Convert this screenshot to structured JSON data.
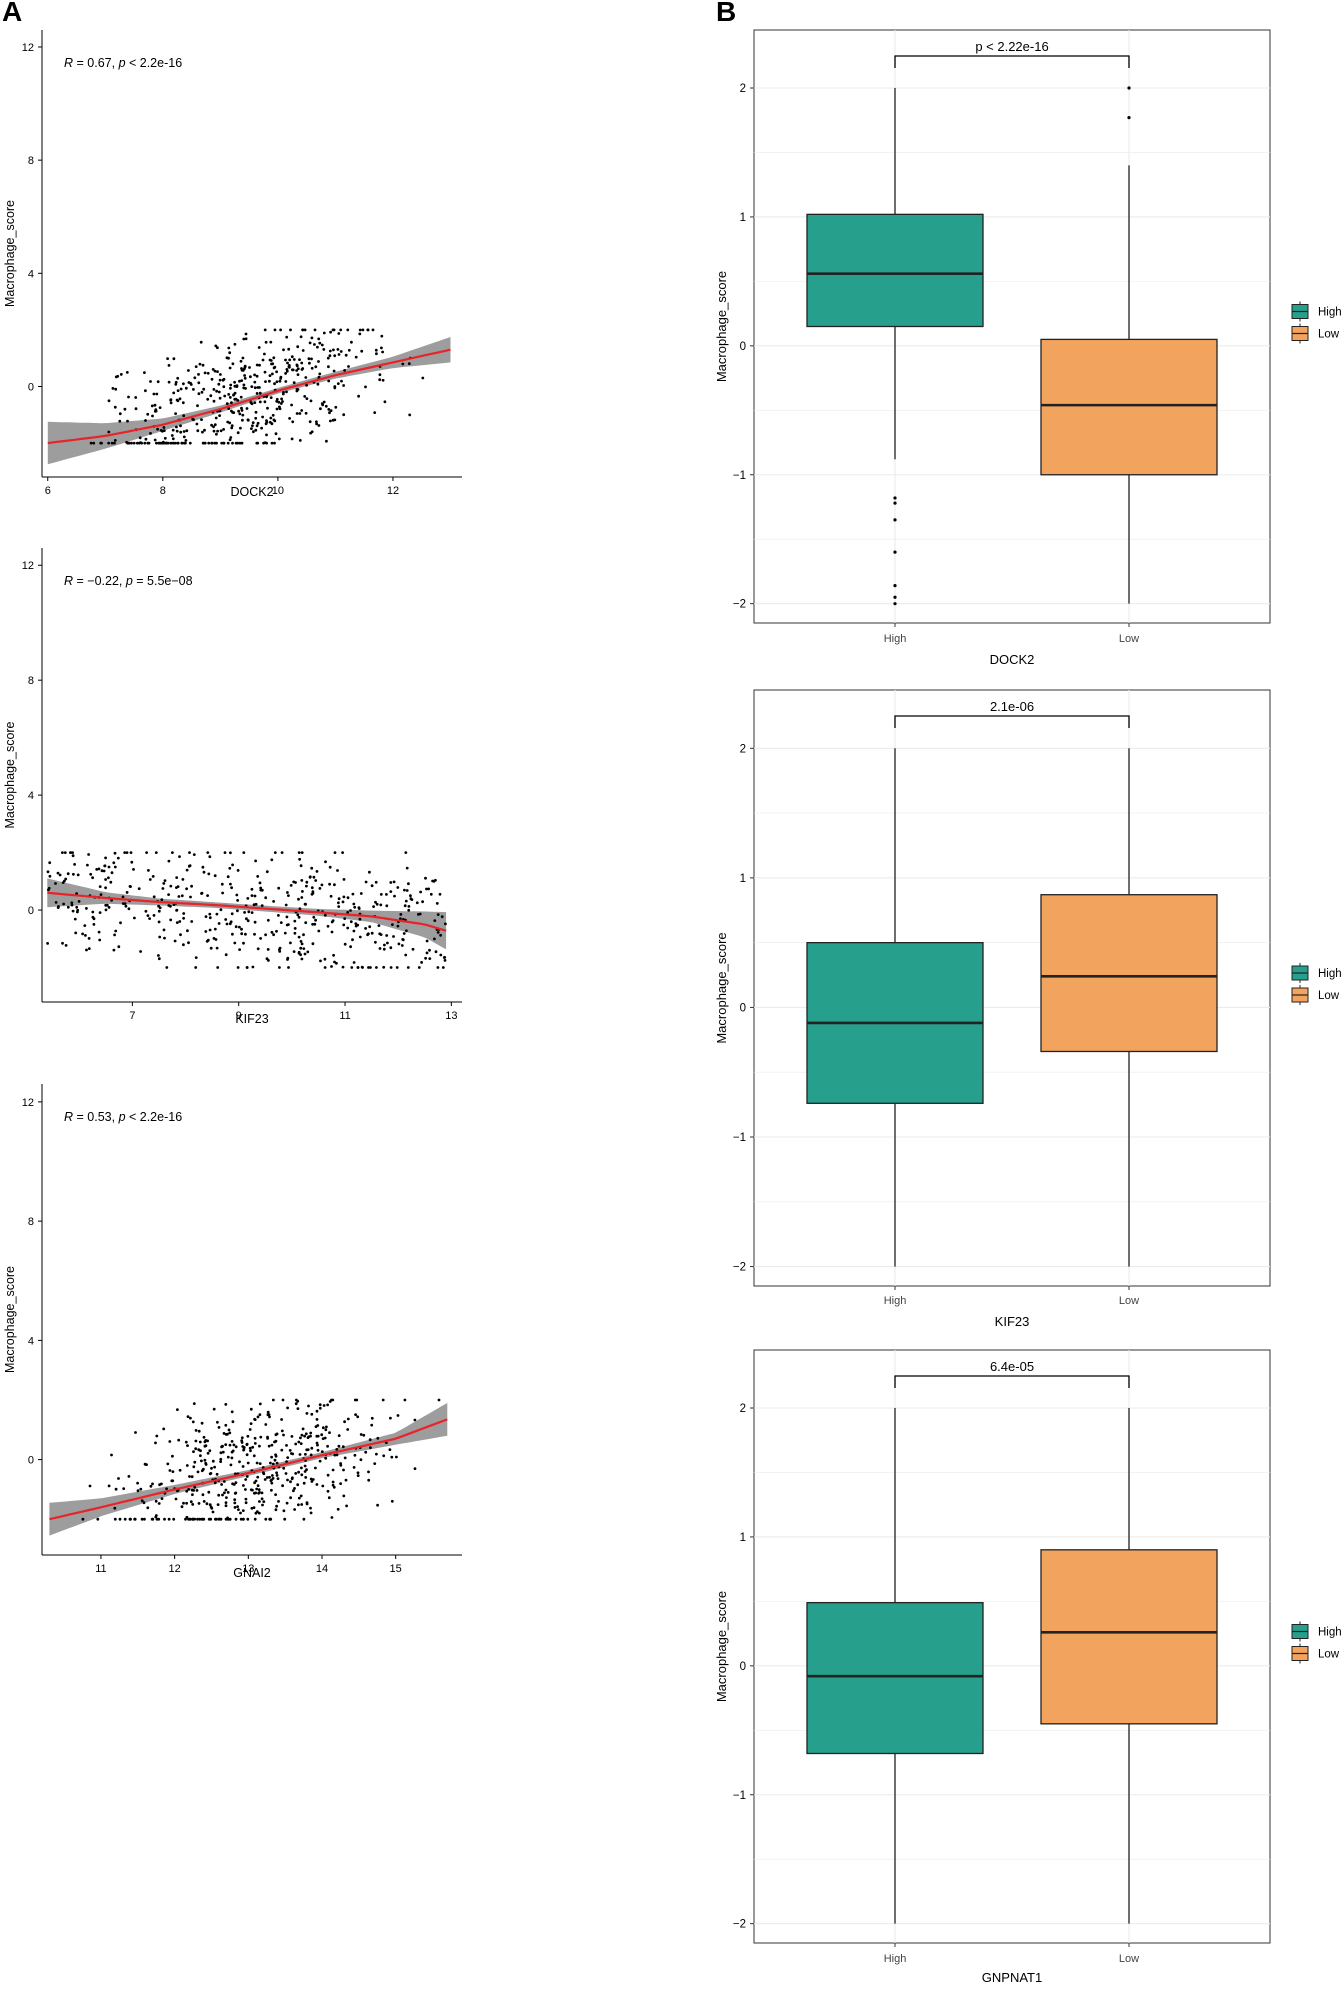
{
  "panels": {
    "a": "A",
    "b": "B"
  },
  "colors": {
    "high": "#26a08c",
    "low": "#f2a35e",
    "fit_line": "#e8232a",
    "ci_band": "#8c8c8c",
    "points": "#000000",
    "grid": "#ebebeb"
  },
  "chart_data": [
    {
      "type": "scatter",
      "panel": "A",
      "xlabel": "DOCK2",
      "ylabel": "Macrophage_score",
      "annotation": {
        "r_label": "R",
        "r_value": "= 0.67, ",
        "p_label": "p",
        "p_value": "< 2.2e-16"
      },
      "xlim": [
        5.9,
        13.2
      ],
      "ylim": [
        -3.2,
        12.6
      ],
      "xticks": [
        6,
        8,
        10,
        12
      ],
      "yticks": [
        0,
        4,
        8,
        12
      ],
      "n_points": 500,
      "x_range": [
        6.0,
        13.0
      ],
      "fit": {
        "x": [
          6,
          7,
          8,
          9,
          10,
          11,
          12,
          13
        ],
        "y": [
          -2.0,
          -1.75,
          -1.35,
          -0.8,
          -0.15,
          0.4,
          0.85,
          1.3
        ]
      },
      "ci_halfwidth": {
        "x": [
          6,
          7,
          8,
          9,
          10,
          11,
          12,
          13
        ],
        "y": [
          0.75,
          0.45,
          0.22,
          0.12,
          0.1,
          0.12,
          0.2,
          0.45
        ]
      }
    },
    {
      "type": "scatter",
      "panel": "A",
      "xlabel": "KIF23",
      "ylabel": "Macrophage_score",
      "annotation": {
        "r_label": "R",
        "r_value": "= −0.22, ",
        "p_label": "p",
        "p_value": "= 5.5e−08"
      },
      "xlim": [
        5.3,
        13.2
      ],
      "ylim": [
        -3.2,
        12.6
      ],
      "xticks": [
        7,
        9,
        11,
        13
      ],
      "yticks": [
        0,
        4,
        8,
        12
      ],
      "n_points": 500,
      "x_range": [
        5.4,
        12.9
      ],
      "fit": {
        "x": [
          5.4,
          6.5,
          7.5,
          8.5,
          9.5,
          10.5,
          11.5,
          12.5,
          12.9
        ],
        "y": [
          0.6,
          0.42,
          0.28,
          0.18,
          0.05,
          -0.08,
          -0.22,
          -0.5,
          -0.72
        ]
      },
      "ci_halfwidth": {
        "x": [
          5.4,
          6.5,
          7.5,
          8.5,
          9.5,
          10.5,
          11.5,
          12.5,
          12.9
        ],
        "y": [
          0.5,
          0.2,
          0.12,
          0.1,
          0.1,
          0.12,
          0.2,
          0.45,
          0.65
        ]
      }
    },
    {
      "type": "scatter",
      "panel": "A",
      "xlabel": "GNAI2",
      "ylabel": "Macrophage_score",
      "annotation": {
        "r_label": "R",
        "r_value": "= 0.53, ",
        "p_label": "p",
        "p_value": "< 2.2e-16"
      },
      "xlim": [
        10.2,
        15.9
      ],
      "ylim": [
        -3.2,
        12.6
      ],
      "xticks": [
        11,
        12,
        13,
        14,
        15
      ],
      "yticks": [
        0,
        4,
        8,
        12
      ],
      "n_points": 500,
      "x_range": [
        10.3,
        15.7
      ],
      "fit": {
        "x": [
          10.3,
          11,
          12,
          13,
          14,
          15,
          15.7
        ],
        "y": [
          -2.0,
          -1.6,
          -1.0,
          -0.45,
          0.15,
          0.7,
          1.35
        ]
      },
      "ci_halfwidth": {
        "x": [
          10.3,
          11,
          12,
          13,
          14,
          15,
          15.7
        ],
        "y": [
          0.55,
          0.3,
          0.15,
          0.1,
          0.1,
          0.2,
          0.55
        ]
      }
    },
    {
      "type": "box",
      "panel": "B",
      "xlabel": "DOCK2",
      "ylabel": "Macrophage_score",
      "pvalue": "p < 2.22e-16",
      "categories": [
        "High",
        "Low"
      ],
      "ylim": [
        -2.15,
        2.45
      ],
      "yticks": [
        -2,
        -1,
        0,
        1,
        2
      ],
      "legend": [
        "High",
        "Low"
      ],
      "boxes": [
        {
          "name": "High",
          "whisker_low": -0.88,
          "q1": 0.15,
          "median": 0.56,
          "q3": 1.02,
          "whisker_high": 2.0,
          "outliers": [
            -1.18,
            -1.22,
            -1.35,
            -1.6,
            -1.86,
            -1.95,
            -2.0
          ]
        },
        {
          "name": "Low",
          "whisker_low": -2.0,
          "q1": -1.0,
          "median": -0.46,
          "q3": 0.05,
          "whisker_high": 1.4,
          "outliers": [
            1.77,
            2.0
          ]
        }
      ]
    },
    {
      "type": "box",
      "panel": "B",
      "xlabel": "KIF23",
      "ylabel": "Macrophage_score",
      "pvalue": "2.1e-06",
      "categories": [
        "High",
        "Low"
      ],
      "ylim": [
        -2.15,
        2.45
      ],
      "yticks": [
        -2,
        -1,
        0,
        1,
        2
      ],
      "legend": [
        "High",
        "Low"
      ],
      "boxes": [
        {
          "name": "High",
          "whisker_low": -2.0,
          "q1": -0.74,
          "median": -0.12,
          "q3": 0.5,
          "whisker_high": 2.0,
          "outliers": []
        },
        {
          "name": "Low",
          "whisker_low": -2.0,
          "q1": -0.34,
          "median": 0.24,
          "q3": 0.87,
          "whisker_high": 2.0,
          "outliers": []
        }
      ]
    },
    {
      "type": "box",
      "panel": "B",
      "xlabel": "GNPNAT1",
      "ylabel": "Macrophage_score",
      "pvalue": "6.4e-05",
      "categories": [
        "High",
        "Low"
      ],
      "ylim": [
        -2.15,
        2.45
      ],
      "yticks": [
        -2,
        -1,
        0,
        1,
        2
      ],
      "legend": [
        "High",
        "Low"
      ],
      "boxes": [
        {
          "name": "High",
          "whisker_low": -2.0,
          "q1": -0.68,
          "median": -0.08,
          "q3": 0.49,
          "whisker_high": 2.0,
          "outliers": []
        },
        {
          "name": "Low",
          "whisker_low": -2.0,
          "q1": -0.45,
          "median": 0.26,
          "q3": 0.9,
          "whisker_high": 2.0,
          "outliers": []
        }
      ]
    }
  ]
}
